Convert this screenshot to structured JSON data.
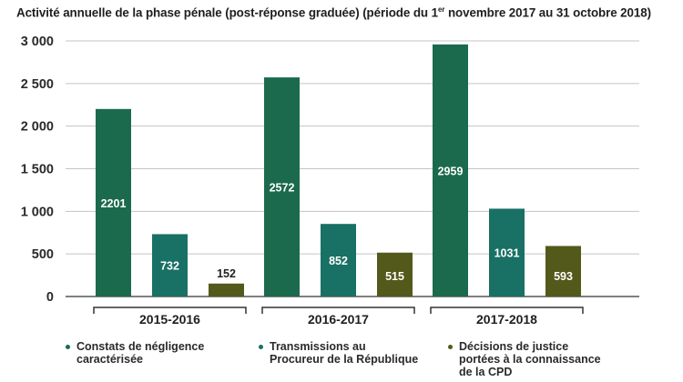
{
  "chart_data": {
    "type": "bar",
    "title": "Activité annuelle de la phase pénale (post-réponse graduée) (période du 1er novembre 2017 au 31 octobre 2018)",
    "title_parts": {
      "before": "Activité annuelle de la phase pénale (post-réponse graduée) (période du 1",
      "sup": "er",
      "after": " novembre 2017 au 31 octobre 2018)"
    },
    "categories": [
      "2015-2016",
      "2016-2017",
      "2017-2018"
    ],
    "series": [
      {
        "name": "Constats de négligence caractérisée",
        "color": "#1b6a4e",
        "values": [
          2201,
          2572,
          2959
        ]
      },
      {
        "name": "Transmissions au Procureur de la République",
        "color": "#197064",
        "values": [
          732,
          852,
          1031
        ]
      },
      {
        "name": "Décisions de justice portées à la connaissance de la CPD",
        "color": "#53591a",
        "values": [
          152,
          515,
          593
        ]
      }
    ],
    "ylim": [
      0,
      3000
    ],
    "yticks": [
      0,
      500,
      1000,
      1500,
      2000,
      2500,
      3000
    ],
    "ytick_labels": [
      "0",
      "500",
      "1 000",
      "1 500",
      "2 000",
      "2 500",
      "3 000"
    ],
    "grid": true,
    "xlabel": "",
    "ylabel": "",
    "legend_position": "bottom"
  },
  "legend": [
    {
      "text": "Constats de négligence\ncaractérisée",
      "color": "#1b6a4e"
    },
    {
      "text": "Transmissions au\nProcureur de la République",
      "color": "#197064"
    },
    {
      "text": "Décisions de justice\nportées à la connaissance\nde la CPD",
      "color": "#53591a"
    }
  ]
}
